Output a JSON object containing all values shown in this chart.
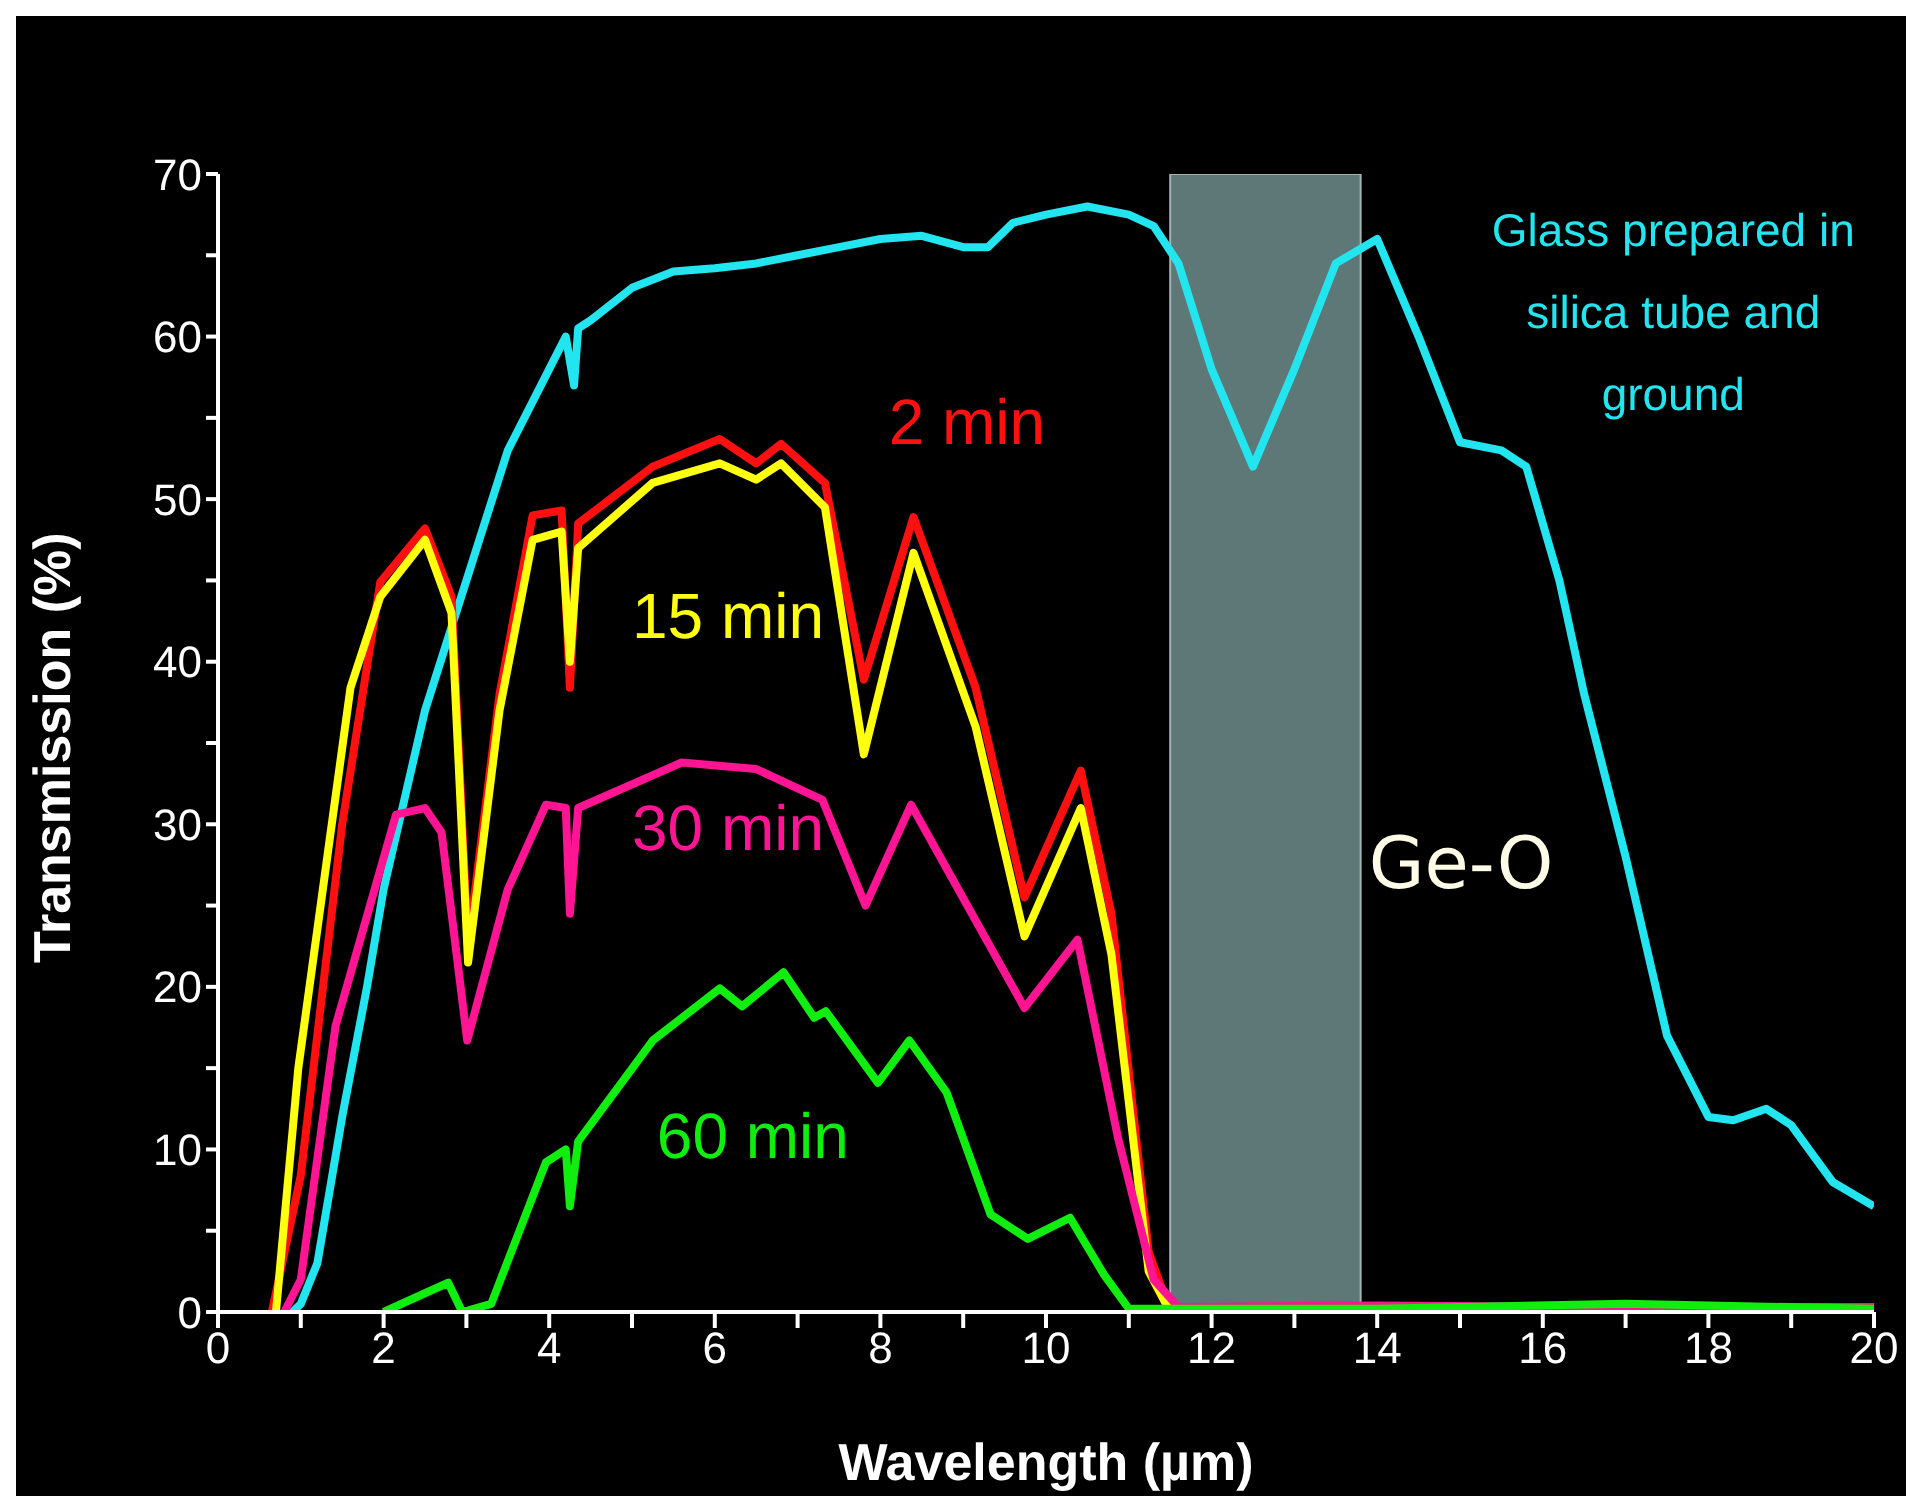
{
  "chart_data": {
    "type": "line",
    "xlabel": "Wavelength (µm)",
    "ylabel": "Transmission (%)",
    "xlim": [
      0,
      20
    ],
    "ylim": [
      0,
      70
    ],
    "xticks": [
      0,
      {
        "value": 1,
        "label": null
      },
      2,
      {
        "value": 3,
        "label": null
      },
      4,
      {
        "value": 5,
        "label": null
      },
      6,
      {
        "value": 7,
        "label": null
      },
      8,
      {
        "value": 9,
        "label": null
      },
      10,
      {
        "value": 11,
        "label": null
      },
      12,
      {
        "value": 13,
        "label": null
      },
      14,
      {
        "value": 15,
        "label": null
      },
      16,
      {
        "value": 17,
        "label": null
      },
      18,
      {
        "value": 19,
        "label": null
      },
      20
    ],
    "yticks": [
      0,
      {
        "value": 5,
        "label": null
      },
      10,
      {
        "value": 15,
        "label": null
      },
      20,
      {
        "value": 25,
        "label": null
      },
      30,
      {
        "value": 35,
        "label": null
      },
      40,
      {
        "value": 45,
        "label": null
      },
      50,
      {
        "value": 55,
        "label": null
      },
      60,
      {
        "value": 65,
        "label": null
      },
      70
    ],
    "marker": "none",
    "line_style": "solid",
    "bands": [
      {
        "axis": "x",
        "from": 11.5,
        "to": 13.8,
        "label": "Ge-O",
        "color": "#6f8c8c"
      }
    ],
    "series": [
      {
        "name": "Glass prepared in silica tube and ground",
        "color": "#22e5f0",
        "x": [
          0.9,
          1.0,
          1.2,
          1.5,
          1.8,
          2.0,
          2.5,
          3.0,
          3.5,
          4.0,
          4.2,
          4.3,
          4.35,
          4.5,
          5,
          5.5,
          6,
          6.5,
          7,
          7.5,
          8,
          8.5,
          9.0,
          9.3,
          9.6,
          10,
          10.5,
          11,
          11.3,
          11.6,
          12,
          12.5,
          13.0,
          13.5,
          14,
          14.5,
          15,
          15.5,
          15.8,
          16.2,
          16.5,
          17,
          17.5,
          18,
          18.3,
          18.7,
          19,
          19.5,
          20
        ],
        "values": [
          0,
          0.5,
          3,
          12,
          20,
          26,
          37,
          45,
          53,
          58,
          60,
          57,
          60.5,
          61,
          63,
          64,
          64.2,
          64.5,
          65,
          65.5,
          66,
          66.2,
          65.5,
          65.5,
          67,
          67.5,
          68,
          67.5,
          66.8,
          64.5,
          58,
          52,
          58,
          64.5,
          66,
          60,
          53.5,
          53,
          52,
          45,
          38,
          28,
          17,
          12,
          11.8,
          12.5,
          11.5,
          8,
          6.5
        ]
      },
      {
        "name": "2 min",
        "color": "#ff1010",
        "x": [
          0.65,
          1.0,
          1.5,
          1.96,
          2.5,
          2.82,
          3.02,
          3.4,
          3.8,
          4.15,
          4.25,
          4.35,
          5.25,
          6.06,
          6.5,
          6.8,
          7.33,
          7.8,
          8.4,
          9.15,
          9.74,
          10.42,
          10.79,
          11.24,
          11.5
        ],
        "values": [
          0,
          8.4,
          30,
          44.9,
          48.2,
          44,
          22.5,
          38,
          49,
          49.3,
          38.4,
          48.5,
          52,
          53.7,
          52.2,
          53.4,
          51,
          38.9,
          48.9,
          38.4,
          25.5,
          33.3,
          24.5,
          3.7,
          0
        ]
      },
      {
        "name": "15 min",
        "color": "#ffff10",
        "x": [
          0.7,
          0.97,
          1.6,
          1.96,
          2.5,
          2.82,
          3.02,
          3.4,
          3.8,
          4.15,
          4.25,
          4.35,
          5.25,
          6.06,
          6.5,
          6.8,
          7.33,
          7.8,
          8.4,
          9.15,
          9.74,
          10.42,
          10.79,
          11.24,
          11.5
        ],
        "values": [
          0,
          15,
          38.4,
          44,
          47.5,
          43,
          21.5,
          37,
          47.5,
          48,
          40,
          47,
          51,
          52.2,
          51.2,
          52.2,
          49.5,
          34.3,
          46.7,
          36,
          23.1,
          31,
          22,
          2.5,
          0
        ]
      },
      {
        "name": "30 min",
        "color": "#ff1493",
        "x": [
          0.8,
          1.0,
          1.42,
          2.15,
          2.5,
          2.7,
          3.01,
          3.5,
          3.96,
          4.2,
          4.25,
          4.35,
          5.6,
          6.5,
          7.3,
          7.82,
          8.37,
          9.74,
          10.38,
          10.87,
          11.3,
          11.6,
          14,
          17,
          20
        ],
        "values": [
          0,
          2,
          17.6,
          30.6,
          31,
          29.5,
          16.7,
          26,
          31.2,
          31,
          24.5,
          31,
          33.8,
          33.4,
          31.5,
          25,
          31.2,
          18.7,
          22.9,
          10.7,
          2,
          0.3,
          0.4,
          0.3,
          0.3
        ]
      },
      {
        "name": "60 min",
        "color": "#10ee10",
        "x": [
          2.0,
          2.78,
          2.95,
          3.3,
          3.96,
          4.2,
          4.25,
          4.35,
          5.25,
          6.06,
          6.33,
          6.83,
          7.2,
          7.34,
          7.97,
          8.35,
          8.8,
          9.33,
          9.78,
          10.29,
          10.7,
          11.0,
          14,
          17,
          20
        ],
        "values": [
          0,
          1.8,
          0,
          0.5,
          9.2,
          10,
          6.5,
          10.5,
          16.7,
          19.9,
          18.8,
          20.9,
          18.1,
          18.5,
          14.1,
          16.7,
          13.5,
          6.0,
          4.5,
          5.8,
          2.3,
          0.2,
          0.2,
          0.5,
          0.2
        ]
      }
    ]
  }
}
